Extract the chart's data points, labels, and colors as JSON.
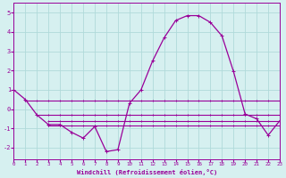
{
  "xlabel": "Windchill (Refroidissement éolien,°C)",
  "background_color": "#d6f0f0",
  "grid_color": "#b0dada",
  "line_color": "#990099",
  "x_values": [
    0,
    1,
    2,
    3,
    4,
    5,
    6,
    7,
    8,
    9,
    10,
    11,
    12,
    13,
    14,
    15,
    16,
    17,
    18,
    19,
    20,
    21,
    22,
    23
  ],
  "y_main": [
    1.0,
    0.5,
    -0.3,
    -0.8,
    -0.8,
    -1.2,
    -1.5,
    -0.9,
    -2.2,
    -2.1,
    0.3,
    1.0,
    2.5,
    3.7,
    4.6,
    4.85,
    4.85,
    4.5,
    3.8,
    1.95,
    -0.25,
    -0.5,
    -1.35,
    -0.6
  ],
  "y_line2_x": [
    1,
    2,
    3,
    4,
    5,
    6,
    7,
    8,
    9,
    10,
    11,
    12,
    13,
    14,
    15,
    16,
    17,
    18,
    19,
    20,
    21,
    22,
    23
  ],
  "y_line2_y": [
    0.45,
    0.45,
    0.45,
    0.45,
    0.45,
    0.45,
    0.45,
    0.45,
    0.45,
    0.45,
    0.45,
    0.45,
    0.45,
    0.45,
    0.45,
    0.45,
    0.45,
    0.45,
    0.45,
    0.45,
    0.45,
    0.45,
    0.45
  ],
  "y_line3_x": [
    2,
    3,
    4,
    5,
    6,
    7,
    8,
    9,
    10,
    11,
    12,
    13,
    14,
    15,
    16,
    17,
    18,
    19,
    20,
    21,
    22,
    23
  ],
  "y_line3_y": [
    -0.3,
    -0.3,
    -0.3,
    -0.3,
    -0.3,
    -0.3,
    -0.3,
    -0.3,
    -0.3,
    -0.3,
    -0.3,
    -0.3,
    -0.3,
    -0.3,
    -0.3,
    -0.3,
    -0.3,
    -0.3,
    -0.3,
    -0.3,
    -0.3,
    -0.3
  ],
  "y_line4_x": [
    3,
    4,
    5,
    6,
    7,
    8,
    9,
    10,
    11,
    12,
    13,
    14,
    15,
    16,
    17,
    18,
    19,
    20,
    21,
    22,
    23
  ],
  "y_line4_y": [
    -0.6,
    -0.6,
    -0.6,
    -0.6,
    -0.6,
    -0.6,
    -0.6,
    -0.6,
    -0.6,
    -0.6,
    -0.6,
    -0.6,
    -0.6,
    -0.6,
    -0.6,
    -0.6,
    -0.6,
    -0.6,
    -0.6,
    -0.6,
    -0.6
  ],
  "y_line5_x": [
    3,
    4,
    5,
    6,
    7,
    8,
    9,
    10,
    11,
    12,
    13,
    14,
    15,
    16,
    17,
    18,
    19,
    20,
    21,
    22,
    23
  ],
  "y_line5_y": [
    -0.85,
    -0.85,
    -0.85,
    -0.85,
    -0.85,
    -0.85,
    -0.85,
    -0.85,
    -0.85,
    -0.85,
    -0.85,
    -0.85,
    -0.85,
    -0.85,
    -0.85,
    -0.85,
    -0.85,
    -0.85,
    -0.85,
    -0.85,
    -0.85
  ],
  "ylim": [
    -2.6,
    5.5
  ],
  "xlim": [
    0,
    23
  ],
  "yticks": [
    -2,
    -1,
    0,
    1,
    2,
    3,
    4,
    5
  ],
  "xticks": [
    0,
    1,
    2,
    3,
    4,
    5,
    6,
    7,
    8,
    9,
    10,
    11,
    12,
    13,
    14,
    15,
    16,
    17,
    18,
    19,
    20,
    21,
    22,
    23
  ]
}
